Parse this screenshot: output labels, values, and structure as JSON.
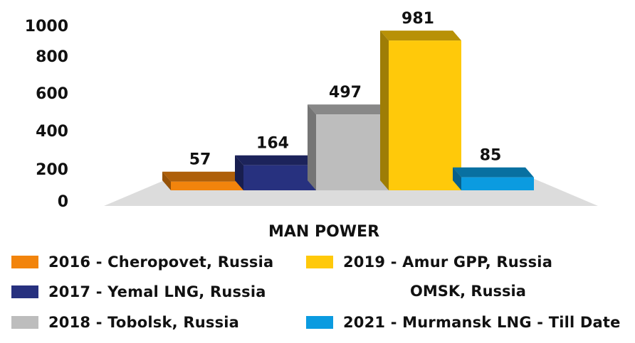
{
  "chart_data": {
    "type": "bar",
    "style": "3d",
    "xlabel": "MAN POWER",
    "ylabel": "",
    "ylim": [
      0,
      1000
    ],
    "yticks": [
      0,
      200,
      400,
      600,
      800,
      1000
    ],
    "grid": false,
    "legend_position": "bottom",
    "series": [
      {
        "name": "2016 - Cheropovet, Russia",
        "values": [
          57
        ],
        "color": "#F2840C"
      },
      {
        "name": "2017 - Yemal LNG, Russia",
        "values": [
          164
        ],
        "color": "#27317F"
      },
      {
        "name": "2018 - Tobolsk, Russia",
        "values": [
          497
        ],
        "color": "#BDBDBD"
      },
      {
        "name": "2019 - Amur GPP, Russia",
        "values": [
          981
        ],
        "color": "#FFC90A"
      },
      {
        "name": "2021 - Murmansk LNG - Till Date",
        "values": [
          85
        ],
        "color": "#0B9BE0"
      }
    ],
    "data_labels": [
      "57",
      "164",
      "497",
      "981",
      "85"
    ]
  },
  "legend": {
    "orphan_text": "OMSK, Russia"
  },
  "colors": {
    "floor": "#DCDCDC",
    "text": "#111111"
  }
}
